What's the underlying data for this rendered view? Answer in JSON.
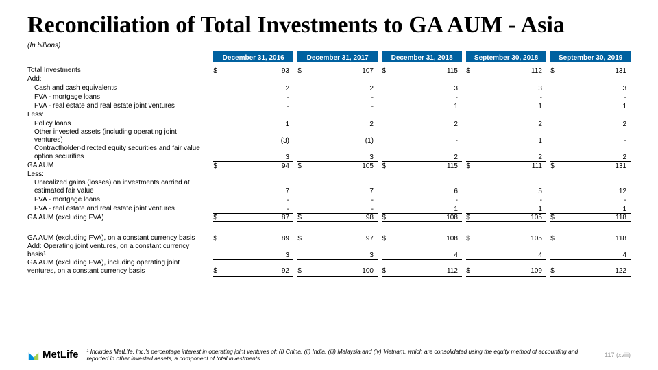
{
  "title": "Reconciliation of Total Investments to GA AUM - Asia",
  "units": "(In billions)",
  "columns": [
    "December 31, 2016",
    "December 31, 2017",
    "December 31, 2018",
    "September 30, 2018",
    "September 30, 2019"
  ],
  "rows": {
    "total_inv": {
      "label": "Total Investments",
      "d": true,
      "v": [
        "93",
        "107",
        "115",
        "112",
        "131"
      ]
    },
    "add": {
      "label": "Add:"
    },
    "cash": {
      "label": "Cash and cash equivalents",
      "v": [
        "2",
        "2",
        "3",
        "3",
        "3"
      ]
    },
    "fva_mort": {
      "label": "FVA - mortgage loans",
      "v": [
        "-",
        "-",
        "-",
        "-",
        "-"
      ]
    },
    "fva_re": {
      "label": "FVA - real estate and real estate joint ventures",
      "v": [
        "-",
        "-",
        "1",
        "1",
        "1"
      ]
    },
    "less": {
      "label": "Less:"
    },
    "policy": {
      "label": "Policy loans",
      "v": [
        "1",
        "2",
        "2",
        "2",
        "2"
      ]
    },
    "other_inv": {
      "label": "Other invested assets (including operating joint ventures)",
      "v": [
        "(3)",
        "(1)",
        "-",
        "1",
        "-"
      ]
    },
    "contract": {
      "label": "Contractholder-directed equity securities and fair value option securities",
      "v": [
        "3",
        "3",
        "2",
        "2",
        "2"
      ]
    },
    "ga_aum": {
      "label": "GA AUM",
      "d": true,
      "v": [
        "94",
        "105",
        "115",
        "111",
        "131"
      ]
    },
    "less2": {
      "label": "Less:"
    },
    "unreal": {
      "label": "Unrealized gains (losses) on investments carried at estimated fair value",
      "v": [
        "7",
        "7",
        "6",
        "5",
        "12"
      ]
    },
    "fva_mort2": {
      "label": "FVA - mortgage loans",
      "v": [
        "-",
        "-",
        "-",
        "-",
        "-"
      ]
    },
    "fva_re2": {
      "label": "FVA - real estate and real estate joint ventures",
      "v": [
        "-",
        "-",
        "1",
        "1",
        "1"
      ]
    },
    "ga_ex": {
      "label": "GA AUM (excluding FVA)",
      "d": true,
      "v": [
        "87",
        "98",
        "108",
        "105",
        "118"
      ]
    },
    "ga_cc": {
      "label": "GA AUM (excluding FVA), on a constant currency basis",
      "d": true,
      "v": [
        "89",
        "97",
        "108",
        "105",
        "118"
      ]
    },
    "add_jv": {
      "label": "Add: Operating joint ventures, on a constant currency basis¹",
      "v": [
        "3",
        "3",
        "4",
        "4",
        "4"
      ]
    },
    "ga_final": {
      "label": "GA AUM (excluding FVA), including operating joint ventures, on a constant currency basis",
      "d": true,
      "v": [
        "92",
        "100",
        "112",
        "109",
        "122"
      ]
    }
  },
  "logo_text": "MetLife",
  "footnote": "¹ Includes MetLife, Inc.'s percentage interest in operating joint ventures of: (i) China, (ii) India, (iii) Malaysia and (iv) Vietnam, which are consolidated using the equity method of accounting and reported in other invested assets, a component of total investments.",
  "page_number": "117 (xviii)",
  "colors": {
    "header_bg": "#0061a0",
    "logo_blue": "#0090da",
    "logo_green": "#a4ce4e"
  }
}
